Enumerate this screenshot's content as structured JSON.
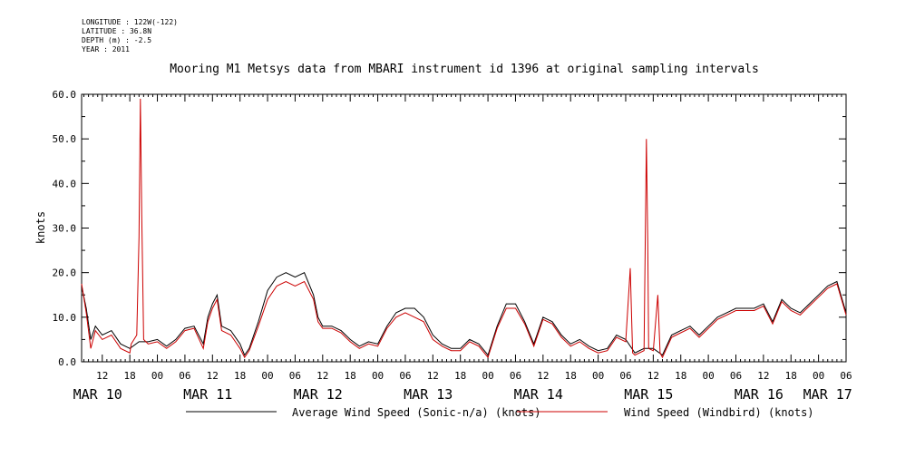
{
  "meta_lines": [
    "LONGITUDE : 122W(-122)",
    "LATITUDE : 36.8N",
    "DEPTH (m) : -2.5",
    "YEAR : 2011"
  ],
  "chart_data": {
    "type": "line",
    "title": "Mooring M1 Metsys data from MBARI instrument id 1396 at original sampling intervals",
    "xlabel": "",
    "ylabel": "knots",
    "ylim": [
      0,
      60
    ],
    "yticks": [
      0,
      10,
      20,
      30,
      40,
      50,
      60
    ],
    "x_units": "hours since MAR 10 00:00 (2011)",
    "xlim": [
      7.5,
      174.0
    ],
    "hour_tick_labels": [
      {
        "h": 12,
        "label": "12"
      },
      {
        "h": 18,
        "label": "18"
      },
      {
        "h": 24,
        "label": "00"
      },
      {
        "h": 30,
        "label": "06"
      },
      {
        "h": 36,
        "label": "12"
      },
      {
        "h": 42,
        "label": "18"
      },
      {
        "h": 48,
        "label": "00"
      },
      {
        "h": 54,
        "label": "06"
      },
      {
        "h": 60,
        "label": "12"
      },
      {
        "h": 66,
        "label": "18"
      },
      {
        "h": 72,
        "label": "00"
      },
      {
        "h": 78,
        "label": "06"
      },
      {
        "h": 84,
        "label": "12"
      },
      {
        "h": 90,
        "label": "18"
      },
      {
        "h": 96,
        "label": "00"
      },
      {
        "h": 102,
        "label": "06"
      },
      {
        "h": 108,
        "label": "12"
      },
      {
        "h": 114,
        "label": "18"
      },
      {
        "h": 120,
        "label": "00"
      },
      {
        "h": 126,
        "label": "06"
      },
      {
        "h": 132,
        "label": "12"
      },
      {
        "h": 138,
        "label": "18"
      },
      {
        "h": 144,
        "label": "00"
      },
      {
        "h": 150,
        "label": "06"
      },
      {
        "h": 156,
        "label": "12"
      },
      {
        "h": 162,
        "label": "18"
      },
      {
        "h": 168,
        "label": "00"
      },
      {
        "h": 174,
        "label": "06"
      }
    ],
    "day_labels": [
      {
        "h": 11,
        "label": "MAR 10"
      },
      {
        "h": 35,
        "label": "MAR 11"
      },
      {
        "h": 59,
        "label": "MAR 12"
      },
      {
        "h": 83,
        "label": "MAR 13"
      },
      {
        "h": 107,
        "label": "MAR 14"
      },
      {
        "h": 131,
        "label": "MAR 15"
      },
      {
        "h": 155,
        "label": "MAR 16"
      },
      {
        "h": 170,
        "label": "MAR 17"
      }
    ],
    "legend": "bottom",
    "series": [
      {
        "name": "Average Wind Speed (Sonic-n/a) (knots)",
        "color": "#000000",
        "points": [
          [
            7.5,
            17.0
          ],
          [
            8.5,
            12.0
          ],
          [
            9.5,
            5.0
          ],
          [
            10.5,
            8.0
          ],
          [
            12,
            6.0
          ],
          [
            14,
            7.0
          ],
          [
            16,
            4.0
          ],
          [
            18,
            3.0
          ],
          [
            20,
            4.5
          ],
          [
            22,
            4.5
          ],
          [
            24,
            5.0
          ],
          [
            26,
            3.5
          ],
          [
            28,
            5.0
          ],
          [
            30,
            7.5
          ],
          [
            32,
            8.0
          ],
          [
            34,
            4.0
          ],
          [
            35,
            10.0
          ],
          [
            36,
            13.0
          ],
          [
            37,
            15.0
          ],
          [
            38,
            8.0
          ],
          [
            40,
            7.0
          ],
          [
            42,
            4.0
          ],
          [
            43,
            1.5
          ],
          [
            44,
            3.0
          ],
          [
            46,
            9.0
          ],
          [
            48,
            16.0
          ],
          [
            50,
            19.0
          ],
          [
            52,
            20.0
          ],
          [
            54,
            19.0
          ],
          [
            56,
            20.0
          ],
          [
            58,
            15.0
          ],
          [
            59,
            10.0
          ],
          [
            60,
            8.0
          ],
          [
            62,
            8.0
          ],
          [
            64,
            7.0
          ],
          [
            66,
            5.0
          ],
          [
            68,
            3.5
          ],
          [
            70,
            4.5
          ],
          [
            72,
            4.0
          ],
          [
            74,
            8.0
          ],
          [
            76,
            11.0
          ],
          [
            78,
            12.0
          ],
          [
            80,
            12.0
          ],
          [
            82,
            10.0
          ],
          [
            84,
            6.0
          ],
          [
            86,
            4.0
          ],
          [
            88,
            3.0
          ],
          [
            90,
            3.0
          ],
          [
            92,
            5.0
          ],
          [
            94,
            4.0
          ],
          [
            96,
            1.5
          ],
          [
            98,
            8.0
          ],
          [
            100,
            13.0
          ],
          [
            102,
            13.0
          ],
          [
            104,
            9.0
          ],
          [
            106,
            4.0
          ],
          [
            108,
            10.0
          ],
          [
            110,
            9.0
          ],
          [
            112,
            6.0
          ],
          [
            114,
            4.0
          ],
          [
            116,
            5.0
          ],
          [
            118,
            3.5
          ],
          [
            120,
            2.5
          ],
          [
            122,
            3.0
          ],
          [
            124,
            6.0
          ],
          [
            126,
            5.0
          ],
          [
            128,
            2.0
          ],
          [
            130,
            3.0
          ],
          [
            132,
            3.0
          ],
          [
            134,
            1.5
          ],
          [
            136,
            6.0
          ],
          [
            138,
            7.0
          ],
          [
            140,
            8.0
          ],
          [
            142,
            6.0
          ],
          [
            144,
            8.0
          ],
          [
            146,
            10.0
          ],
          [
            148,
            11.0
          ],
          [
            150,
            12.0
          ],
          [
            152,
            12.0
          ],
          [
            154,
            12.0
          ],
          [
            156,
            13.0
          ],
          [
            158,
            9.0
          ],
          [
            160,
            14.0
          ],
          [
            162,
            12.0
          ],
          [
            164,
            11.0
          ],
          [
            166,
            13.0
          ],
          [
            168,
            15.0
          ],
          [
            170,
            17.0
          ],
          [
            172,
            18.0
          ],
          [
            174,
            11.0
          ]
        ]
      },
      {
        "name": "Wind Speed (Windbird) (knots)",
        "color": "#cc0000",
        "points": [
          [
            7.5,
            17.5
          ],
          [
            8.5,
            11.0
          ],
          [
            9.5,
            3.0
          ],
          [
            10.5,
            7.0
          ],
          [
            12,
            5.0
          ],
          [
            14,
            6.0
          ],
          [
            16,
            3.0
          ],
          [
            18,
            2.0
          ],
          [
            18.3,
            4.0
          ],
          [
            19.5,
            6.0
          ],
          [
            20,
            28.0
          ],
          [
            20.3,
            59.0
          ],
          [
            20.6,
            33.0
          ],
          [
            21,
            5.0
          ],
          [
            22,
            4.0
          ],
          [
            24,
            4.5
          ],
          [
            26,
            3.0
          ],
          [
            28,
            4.5
          ],
          [
            30,
            7.0
          ],
          [
            32,
            7.5
          ],
          [
            34,
            3.0
          ],
          [
            35,
            9.0
          ],
          [
            36,
            12.0
          ],
          [
            37,
            14.0
          ],
          [
            38,
            7.0
          ],
          [
            40,
            6.0
          ],
          [
            42,
            3.0
          ],
          [
            43,
            1.0
          ],
          [
            44,
            2.5
          ],
          [
            46,
            8.0
          ],
          [
            48,
            14.0
          ],
          [
            50,
            17.0
          ],
          [
            52,
            18.0
          ],
          [
            54,
            17.0
          ],
          [
            56,
            18.0
          ],
          [
            58,
            14.0
          ],
          [
            59,
            9.0
          ],
          [
            60,
            7.5
          ],
          [
            62,
            7.5
          ],
          [
            64,
            6.5
          ],
          [
            66,
            4.5
          ],
          [
            68,
            3.0
          ],
          [
            70,
            4.0
          ],
          [
            72,
            3.5
          ],
          [
            74,
            7.5
          ],
          [
            76,
            10.0
          ],
          [
            78,
            11.0
          ],
          [
            80,
            10.0
          ],
          [
            82,
            9.0
          ],
          [
            84,
            5.0
          ],
          [
            86,
            3.5
          ],
          [
            88,
            2.5
          ],
          [
            90,
            2.5
          ],
          [
            92,
            4.5
          ],
          [
            94,
            3.5
          ],
          [
            96,
            1.0
          ],
          [
            98,
            7.5
          ],
          [
            100,
            12.0
          ],
          [
            102,
            12.0
          ],
          [
            104,
            8.5
          ],
          [
            106,
            3.5
          ],
          [
            108,
            9.5
          ],
          [
            110,
            8.5
          ],
          [
            112,
            5.5
          ],
          [
            114,
            3.5
          ],
          [
            116,
            4.5
          ],
          [
            118,
            3.0
          ],
          [
            120,
            2.0
          ],
          [
            122,
            2.5
          ],
          [
            124,
            5.5
          ],
          [
            126,
            4.5
          ],
          [
            127,
            21.0
          ],
          [
            127.5,
            2.0
          ],
          [
            128,
            1.5
          ],
          [
            130,
            2.5
          ],
          [
            130.5,
            50.0
          ],
          [
            130.8,
            27.0
          ],
          [
            131,
            3.0
          ],
          [
            132,
            2.5
          ],
          [
            133,
            15.0
          ],
          [
            133.5,
            2.0
          ],
          [
            134,
            1.0
          ],
          [
            136,
            5.5
          ],
          [
            138,
            6.5
          ],
          [
            140,
            7.5
          ],
          [
            142,
            5.5
          ],
          [
            144,
            7.5
          ],
          [
            146,
            9.5
          ],
          [
            148,
            10.5
          ],
          [
            150,
            11.5
          ],
          [
            152,
            11.5
          ],
          [
            154,
            11.5
          ],
          [
            156,
            12.5
          ],
          [
            158,
            8.5
          ],
          [
            160,
            13.5
          ],
          [
            162,
            11.5
          ],
          [
            164,
            10.5
          ],
          [
            166,
            12.5
          ],
          [
            168,
            14.5
          ],
          [
            170,
            16.5
          ],
          [
            172,
            17.5
          ],
          [
            174,
            10.5
          ]
        ]
      }
    ]
  }
}
